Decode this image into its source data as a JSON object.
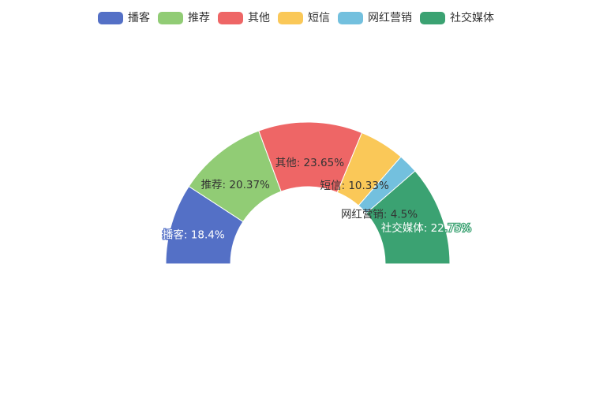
{
  "chart_data": {
    "type": "pie",
    "variant": "half-donut",
    "title": "",
    "legend_position": "top-center",
    "slices": [
      {
        "name": "播客",
        "value": 18.4,
        "label": "播客: 18.4%",
        "color": "#5470c6"
      },
      {
        "name": "推荐",
        "value": 20.37,
        "label": "推荐: 20.37%",
        "color": "#91cc75"
      },
      {
        "name": "其他",
        "value": 23.65,
        "label": "其他: 23.65%",
        "color": "#ee6666"
      },
      {
        "name": "短信",
        "value": 10.33,
        "label": "短信: 10.33%",
        "color": "#fac858"
      },
      {
        "name": "网红营销",
        "value": 4.5,
        "label": "网红营销: 4.5%",
        "color": "#73c0de"
      },
      {
        "name": "社交媒体",
        "value": 22.75,
        "label": "社交媒体: 22.75%",
        "color": "#3ba272"
      }
    ]
  }
}
